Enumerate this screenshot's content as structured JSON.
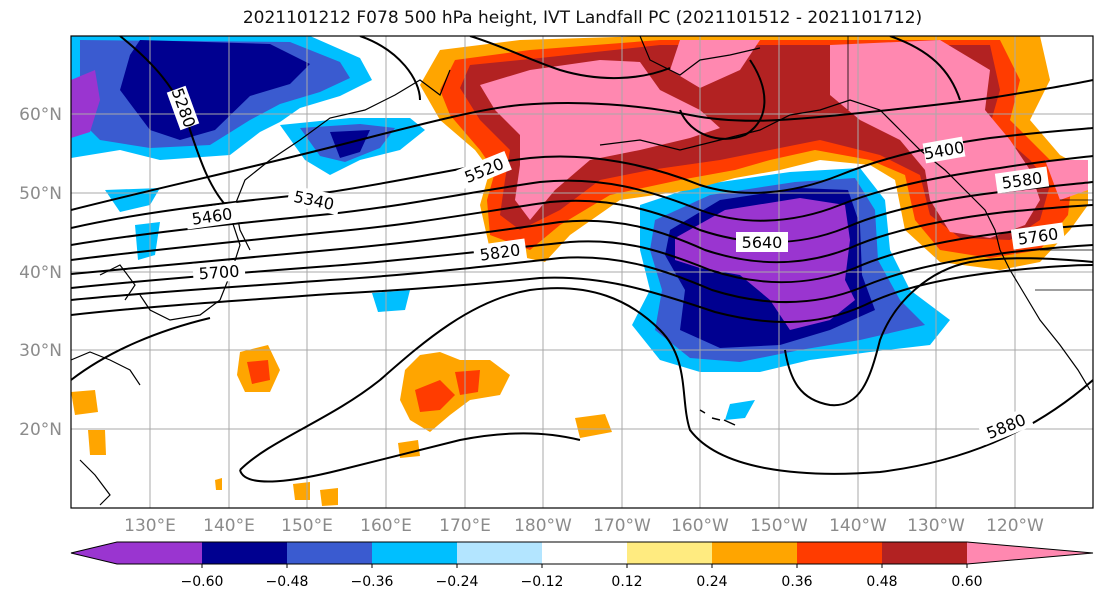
{
  "title": "2021101212 F078 500 hPa height, IVT Landfall PC (2021101512 - 2021101712)",
  "map": {
    "lat_labels": [
      "60°N",
      "50°N",
      "40°N",
      "30°N",
      "20°N"
    ],
    "lon_labels": [
      "130°E",
      "140°E",
      "150°E",
      "160°E",
      "170°E",
      "180°W",
      "170°W",
      "160°W",
      "150°W",
      "140°W",
      "130°W",
      "120°W"
    ],
    "contour_labels": [
      "5280",
      "5340",
      "5460",
      "5520",
      "5700",
      "5820",
      "5640",
      "5580",
      "5760",
      "5880",
      "5400"
    ],
    "colors": {
      "grid": "#a9a9a9",
      "land_outline": "#000000"
    }
  },
  "colorbar": {
    "tick_labels": [
      "−0.60",
      "−0.48",
      "−0.36",
      "−0.24",
      "−0.12",
      "0.12",
      "0.24",
      "0.36",
      "0.48",
      "0.60"
    ],
    "colors": [
      "#9a35d0",
      "#000090",
      "#3a5bd0",
      "#00bfff",
      "#b3e5ff",
      "#ffffff",
      "#ffeb80",
      "#ffa500",
      "#ff3c00",
      "#b22222",
      "#ff88b0"
    ]
  }
}
